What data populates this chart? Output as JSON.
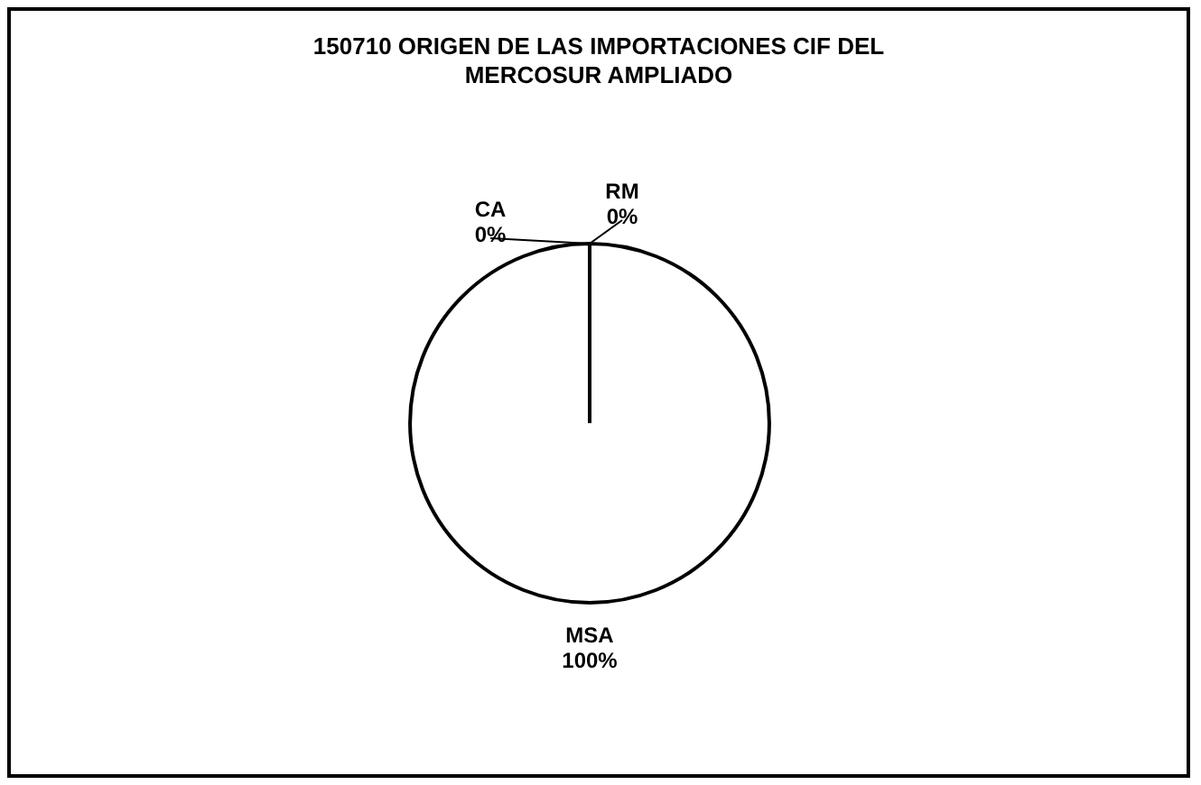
{
  "chart_data": {
    "type": "pie",
    "title": "150710 ORIGEN DE LAS IMPORTACIONES CIF DEL MERCOSUR AMPLIADO",
    "categories": [
      "RM",
      "MSA",
      "CA"
    ],
    "values": [
      0,
      100,
      0
    ],
    "colors": [
      "#ffffff",
      "#ffffff",
      "#ffffff"
    ],
    "value_labels": [
      "0%",
      "100%",
      "0%"
    ],
    "legend": false
  }
}
